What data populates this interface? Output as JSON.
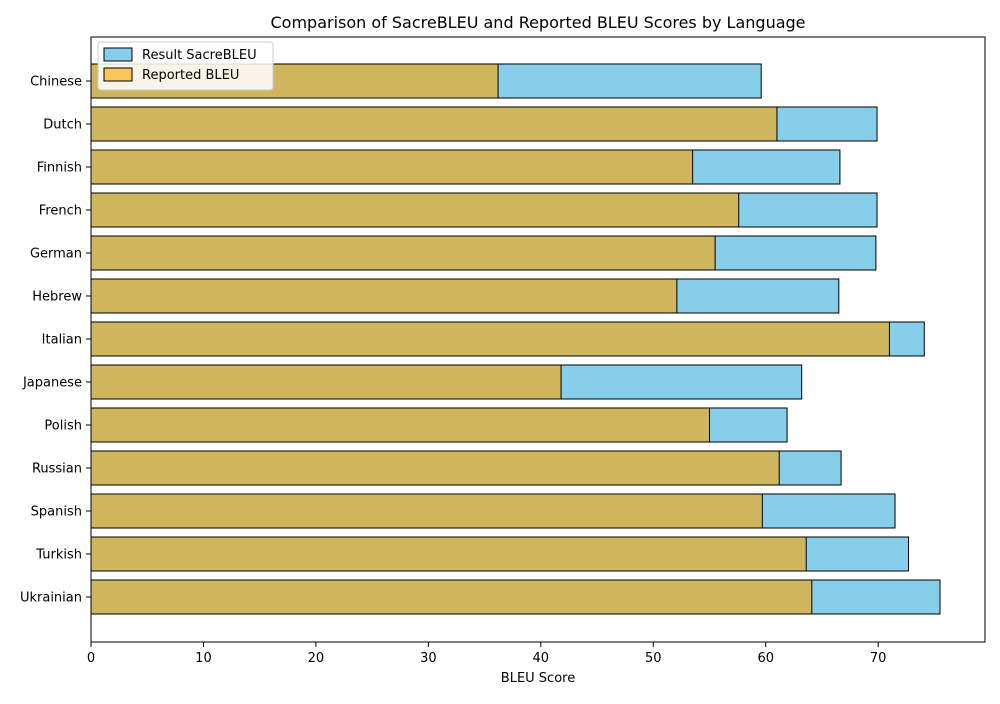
{
  "chart_data": {
    "type": "bar",
    "orientation": "horizontal",
    "title": "Comparison of SacreBLEU and Reported BLEU Scores by Language",
    "xlabel": "BLEU Score",
    "ylabel": "",
    "xlim": [
      0,
      79.5
    ],
    "xticks": [
      0,
      10,
      20,
      30,
      40,
      50,
      60,
      70
    ],
    "grid": false,
    "legend_position": "top-left",
    "categories": [
      "Chinese",
      "Dutch",
      "Finnish",
      "French",
      "German",
      "Hebrew",
      "Italian",
      "Japanese",
      "Polish",
      "Russian",
      "Spanish",
      "Turkish",
      "Ukrainian"
    ],
    "series": [
      {
        "name": "Result SacreBLEU",
        "color": "#87ceeb",
        "values": [
          59.6,
          69.9,
          66.6,
          69.9,
          69.8,
          66.5,
          74.1,
          63.2,
          61.9,
          66.7,
          71.5,
          72.7,
          75.5
        ]
      },
      {
        "name": "Reported BLEU",
        "color": "#ffa500",
        "alpha": 0.6,
        "values": [
          36.2,
          61.0,
          53.5,
          57.6,
          55.5,
          52.1,
          71.0,
          41.8,
          55.0,
          61.2,
          59.7,
          63.6,
          64.1
        ]
      }
    ]
  }
}
